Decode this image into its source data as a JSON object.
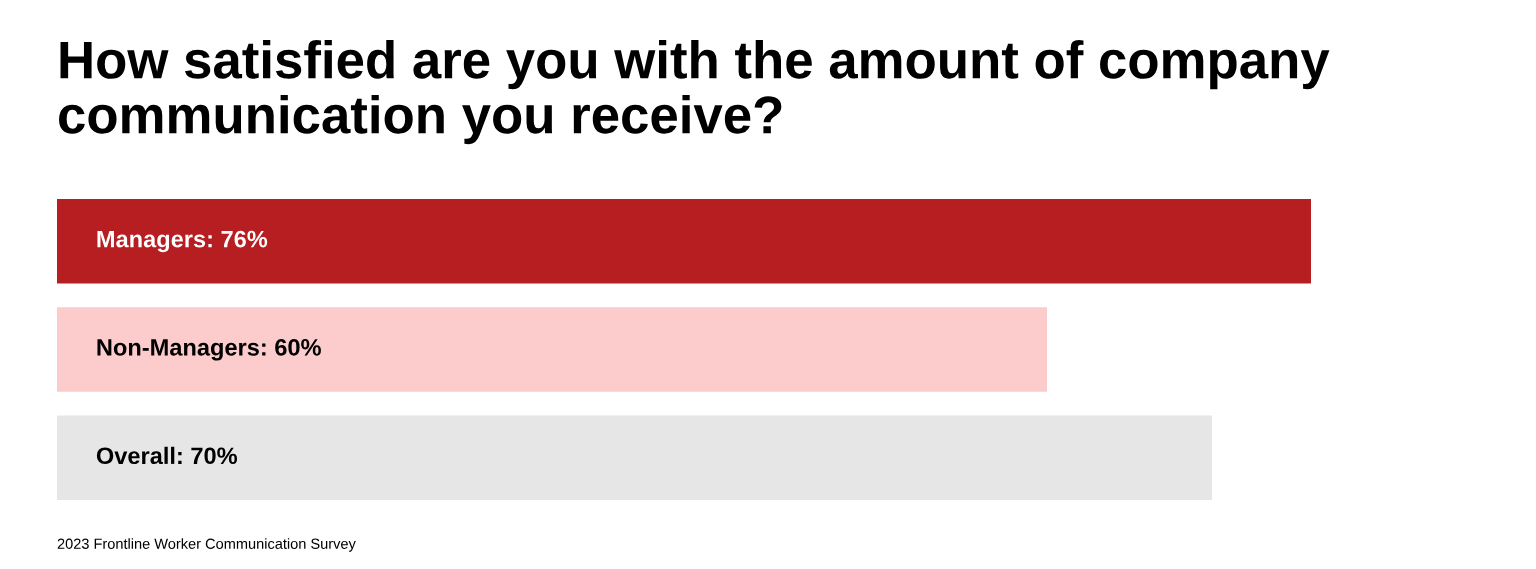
{
  "chart_data": {
    "type": "bar",
    "orientation": "horizontal",
    "title": "How satisfied are you with the amount of company\ncommunication you receive?",
    "categories": [
      null,
      null,
      null
    ],
    "values": [
      76,
      60,
      70
    ],
    "colors": [
      "#b71e22",
      "#fccbcb",
      "#e6e6e6"
    ],
    "value_labels": [
      "Managers: 76%",
      "Non-Managers: 60%",
      "Overall: 70%"
    ],
    "annotations": [
      "2023 Frontline Worker Communication Survey"
    ],
    "grid": false,
    "legend": false,
    "tick_labels": false
  }
}
